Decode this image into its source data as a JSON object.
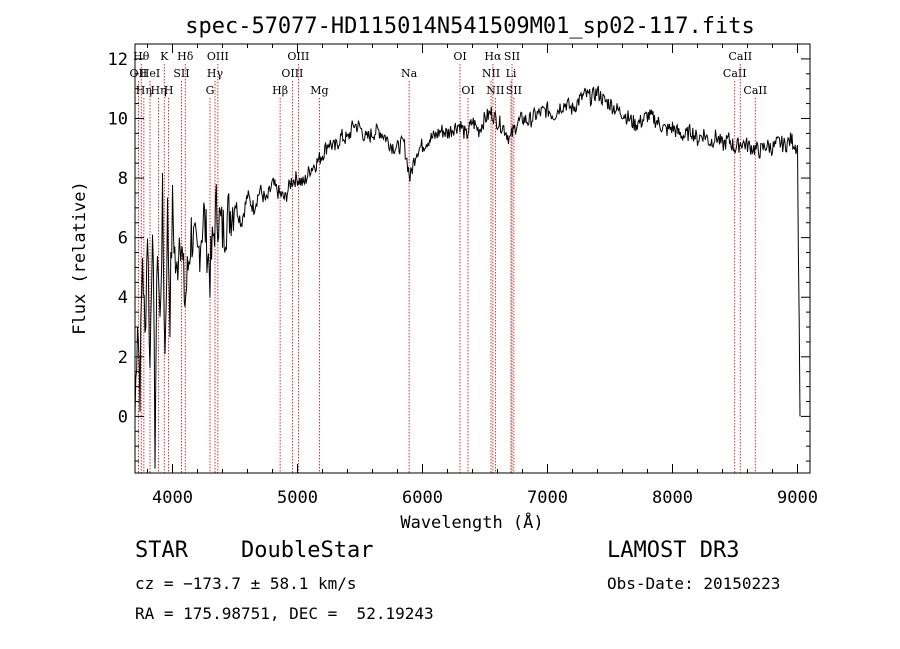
{
  "chart_data": {
    "type": "line",
    "title": "spec-57077-HD115014N541509M01_sp02-117.fits",
    "xlabel": "Wavelength (Å)",
    "ylabel": "Flux (relative)",
    "xlim": [
      3700,
      9100
    ],
    "ylim": [
      -1.9,
      12.5
    ],
    "xticks": [
      4000,
      5000,
      6000,
      7000,
      8000,
      9000
    ],
    "yticks": [
      0,
      2,
      4,
      6,
      8,
      10,
      12
    ],
    "series": [
      {
        "name": "spectrum",
        "x": [
          3700,
          3720,
          3740,
          3760,
          3780,
          3800,
          3820,
          3840,
          3860,
          3880,
          3900,
          3920,
          3940,
          3960,
          3980,
          4000,
          4030,
          4060,
          4100,
          4150,
          4200,
          4250,
          4300,
          4350,
          4400,
          4450,
          4500,
          4550,
          4600,
          4650,
          4700,
          4750,
          4800,
          4850,
          4900,
          4950,
          5000,
          5050,
          5100,
          5150,
          5200,
          5250,
          5300,
          5350,
          5400,
          5450,
          5500,
          5550,
          5600,
          5650,
          5700,
          5750,
          5800,
          5850,
          5900,
          5950,
          6000,
          6050,
          6100,
          6150,
          6200,
          6250,
          6300,
          6350,
          6400,
          6450,
          6500,
          6550,
          6600,
          6650,
          6700,
          6750,
          6800,
          6850,
          6900,
          6950,
          7000,
          7050,
          7100,
          7150,
          7200,
          7250,
          7300,
          7350,
          7400,
          7450,
          7500,
          7550,
          7600,
          7650,
          7700,
          7750,
          7800,
          7850,
          7900,
          7950,
          8000,
          8050,
          8100,
          8150,
          8200,
          8250,
          8300,
          8350,
          8400,
          8450,
          8500,
          8550,
          8600,
          8650,
          8700,
          8750,
          8800,
          8850,
          8900,
          8950,
          9000,
          9020
        ],
        "y": [
          0.0,
          3.5,
          1.0,
          5.5,
          2.5,
          6.5,
          1.5,
          7.0,
          -1.0,
          6.0,
          3.0,
          7.2,
          2.0,
          6.8,
          3.5,
          7.0,
          4.5,
          6.5,
          3.8,
          6.2,
          5.2,
          6.8,
          4.8,
          7.0,
          6.2,
          6.8,
          7.2,
          6.5,
          7.4,
          7.0,
          7.6,
          7.2,
          7.8,
          7.5,
          7.3,
          7.9,
          8.0,
          7.8,
          8.3,
          8.5,
          8.8,
          9.2,
          9.0,
          9.4,
          9.3,
          9.8,
          9.7,
          9.3,
          9.5,
          9.6,
          9.4,
          9.1,
          9.0,
          9.2,
          8.0,
          8.9,
          9.1,
          9.3,
          9.4,
          9.6,
          9.5,
          9.7,
          9.8,
          9.4,
          9.9,
          9.6,
          10.0,
          10.2,
          9.9,
          9.7,
          9.3,
          9.8,
          10.0,
          9.9,
          10.1,
          10.2,
          10.3,
          10.1,
          10.4,
          10.5,
          10.3,
          10.6,
          10.8,
          10.7,
          10.9,
          10.6,
          10.5,
          10.3,
          10.2,
          10.0,
          9.8,
          9.9,
          10.1,
          10.0,
          9.8,
          9.6,
          9.7,
          9.5,
          9.4,
          9.6,
          9.3,
          9.5,
          9.2,
          9.4,
          9.1,
          9.3,
          9.0,
          9.2,
          9.1,
          9.0,
          8.9,
          9.1,
          9.0,
          9.2,
          9.1,
          9.3,
          9.0,
          0.0
        ]
      }
    ],
    "line_markers": [
      {
        "wl": 3727,
        "label": "OII",
        "row": 1
      },
      {
        "wl": 3750,
        "label": "Hθ",
        "row": 0
      },
      {
        "wl": 3771,
        "label": "Hη",
        "row": 2
      },
      {
        "wl": 3820,
        "label": "HeI",
        "row": 1
      },
      {
        "wl": 3889,
        "label": "Hη",
        "row": 2
      },
      {
        "wl": 3934,
        "label": "K",
        "row": 0
      },
      {
        "wl": 3969,
        "label": "H",
        "row": 2
      },
      {
        "wl": 4072,
        "label": "SII",
        "row": 1
      },
      {
        "wl": 4102,
        "label": "Hδ",
        "row": 0
      },
      {
        "wl": 4300,
        "label": "G",
        "row": 2
      },
      {
        "wl": 4340,
        "label": "Hγ",
        "row": 1
      },
      {
        "wl": 4363,
        "label": "OIII",
        "row": 0
      },
      {
        "wl": 4861,
        "label": "Hβ",
        "row": 2
      },
      {
        "wl": 4959,
        "label": "OIII",
        "row": 1
      },
      {
        "wl": 5007,
        "label": "OIII",
        "row": 0
      },
      {
        "wl": 5175,
        "label": "Mg",
        "row": 2
      },
      {
        "wl": 5893,
        "label": "Na",
        "row": 1
      },
      {
        "wl": 6300,
        "label": "OI",
        "row": 0
      },
      {
        "wl": 6364,
        "label": "OI",
        "row": 2
      },
      {
        "wl": 6548,
        "label": "NII",
        "row": 1
      },
      {
        "wl": 6563,
        "label": "Hα",
        "row": 0
      },
      {
        "wl": 6583,
        "label": "NII",
        "row": 2
      },
      {
        "wl": 6708,
        "label": "Li",
        "row": 1
      },
      {
        "wl": 6716,
        "label": "SII",
        "row": 0
      },
      {
        "wl": 6731,
        "label": "SII",
        "row": 2
      },
      {
        "wl": 8498,
        "label": "CaII",
        "row": 1
      },
      {
        "wl": 8542,
        "label": "CaII",
        "row": 0
      },
      {
        "wl": 8662,
        "label": "CaII",
        "row": 2
      }
    ]
  },
  "info": {
    "class": "STAR",
    "subclass": "DoubleStar",
    "survey": "LAMOST DR3",
    "cz": "cz = −173.7 ± 58.1 km/s",
    "obsdate": "Obs-Date: 20150223",
    "radec": "RA = 175.98751, DEC =  52.19243"
  }
}
